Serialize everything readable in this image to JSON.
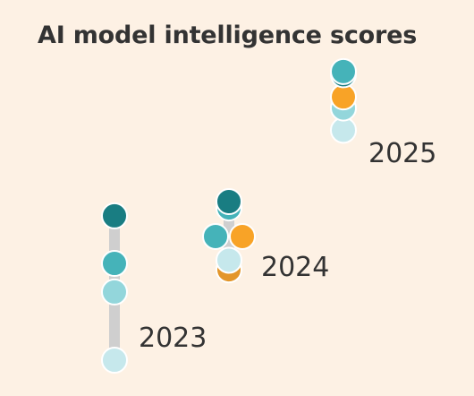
{
  "title": "AI model intelligence scores",
  "chart_data": {
    "type": "scatter",
    "title": "AI model intelligence scores",
    "xlabel": "",
    "ylabel": "",
    "colors": {
      "dark_teal": "#197d82",
      "teal": "#45b3b9",
      "light_teal": "#93d6db",
      "pale_teal": "#c6e8ec",
      "orange": "#f8a327",
      "dark_orange": "#e3962a",
      "bar": "#cfcfcf"
    },
    "groups": [
      {
        "label": "2023",
        "points": [
          {
            "score": 0.0,
            "color": "pale_teal"
          },
          {
            "score": 0.43,
            "color": "light_teal"
          },
          {
            "score": 0.61,
            "color": "teal"
          },
          {
            "score": 0.91,
            "color": "dark_teal"
          }
        ]
      },
      {
        "label": "2024",
        "points": [
          {
            "score": 0.57,
            "color": "dark_orange"
          },
          {
            "score": 0.63,
            "color": "pale_teal"
          },
          {
            "score": 0.78,
            "color": "teal"
          },
          {
            "score": 0.78,
            "color": "orange"
          },
          {
            "score": 0.96,
            "color": "teal"
          },
          {
            "score": 1.0,
            "color": "dark_teal"
          }
        ]
      },
      {
        "label": "2025",
        "points": [
          {
            "score": 1.45,
            "color": "pale_teal"
          },
          {
            "score": 1.59,
            "color": "light_teal"
          },
          {
            "score": 1.66,
            "color": "orange"
          },
          {
            "score": 1.8,
            "color": "dark_teal"
          },
          {
            "score": 1.82,
            "color": "teal"
          }
        ]
      }
    ]
  }
}
